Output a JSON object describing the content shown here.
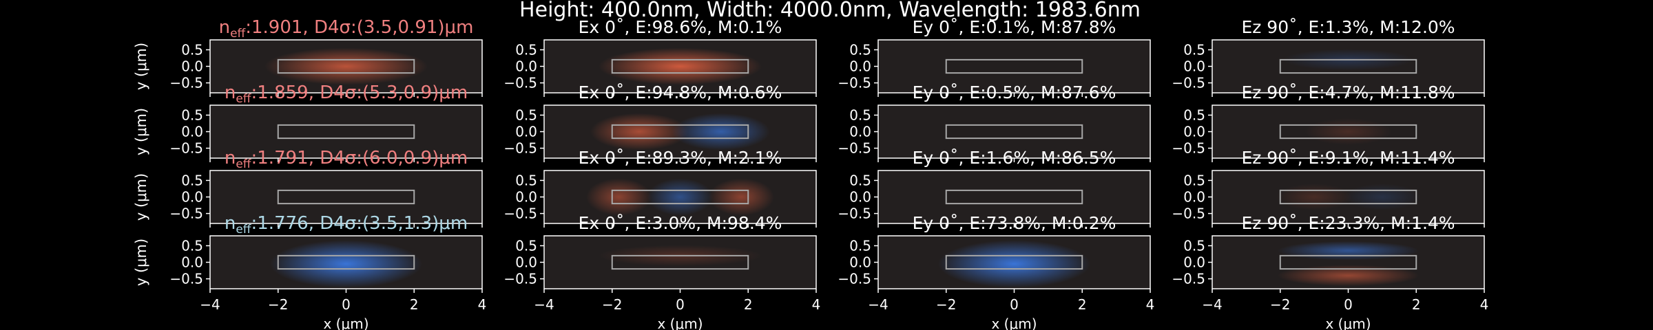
{
  "chart_data": {
    "type": "heatmap",
    "suptitle": "Height: 400.0nm, Width: 4000.0nm, Wavelength: 1983.6nm",
    "ylabel": "y (μm)",
    "xlabel": "x (μm)",
    "xlim": [
      -4,
      4
    ],
    "ylim": [
      -0.8,
      0.8
    ],
    "xticks": [
      "−4",
      "−2",
      "0",
      "2",
      "4"
    ],
    "yticks": [
      "0.5",
      "0.0",
      "−0.5"
    ],
    "waveguide": {
      "x": [
        -2,
        2
      ],
      "y": [
        -0.2,
        0.2
      ]
    },
    "colors": {
      "te": "#f08080",
      "tm": "#add8e6",
      "positive": "#e06040",
      "negative": "#3b78e0",
      "background": "#231f1f"
    },
    "modes": [
      {
        "label_pre": "n",
        "label_sub": "eff",
        "label_post": ":1.901, D4σ:(3.5,0.91)μm",
        "label_color": "te",
        "panels": [
          {
            "title": "",
            "lobes": [
              {
                "x": 0,
                "y": 0,
                "sx": 1.5,
                "sy": 0.35,
                "sign": 1,
                "amp": 0.8
              }
            ]
          },
          {
            "title": "Ex 0˚, E:98.6%, M:0.1%",
            "lobes": [
              {
                "x": 0,
                "y": 0,
                "sx": 1.5,
                "sy": 0.35,
                "sign": 1,
                "amp": 0.9
              }
            ]
          },
          {
            "title": "Ey 0˚, E:0.1%, M:87.8%",
            "lobes": []
          },
          {
            "title": "Ez 90˚, E:1.3%, M:12.0%",
            "lobes": [
              {
                "x": 0,
                "y": 0.2,
                "sx": 1.2,
                "sy": 0.2,
                "sign": -1,
                "amp": 0.25
              }
            ]
          }
        ]
      },
      {
        "label_pre": "n",
        "label_sub": "eff",
        "label_post": ":1.859, D4σ:(5.3,0.9)μm",
        "label_color": "te",
        "panels": [
          {
            "title": "",
            "lobes": []
          },
          {
            "title": "Ex 0˚, E:94.8%, M:0.6%",
            "lobes": [
              {
                "x": -1.2,
                "y": 0,
                "sx": 0.9,
                "sy": 0.35,
                "sign": 1,
                "amp": 0.7
              },
              {
                "x": 1.2,
                "y": 0,
                "sx": 0.9,
                "sy": 0.35,
                "sign": -1,
                "amp": 0.7
              }
            ]
          },
          {
            "title": "Ey 0˚, E:0.5%, M:87.6%",
            "lobes": []
          },
          {
            "title": "Ez 90˚, E:4.7%, M:11.8%",
            "lobes": [
              {
                "x": 0,
                "y": 0,
                "sx": 0.8,
                "sy": 0.25,
                "sign": 1,
                "amp": 0.2
              }
            ]
          }
        ]
      },
      {
        "label_pre": "n",
        "label_sub": "eff",
        "label_post": ":1.791, D4σ:(6.0,0.9)μm",
        "label_color": "te",
        "panels": [
          {
            "title": "",
            "lobes": []
          },
          {
            "title": "Ex 0˚, E:89.3%, M:2.1%",
            "lobes": [
              {
                "x": -1.8,
                "y": 0,
                "sx": 0.6,
                "sy": 0.35,
                "sign": 1,
                "amp": 0.55
              },
              {
                "x": 0,
                "y": 0,
                "sx": 0.6,
                "sy": 0.35,
                "sign": -1,
                "amp": 0.55
              },
              {
                "x": 1.8,
                "y": 0,
                "sx": 0.6,
                "sy": 0.35,
                "sign": 1,
                "amp": 0.55
              }
            ]
          },
          {
            "title": "Ey 0˚, E:1.6%, M:86.5%",
            "lobes": []
          },
          {
            "title": "Ez 90˚, E:9.1%, M:11.4%",
            "lobes": [
              {
                "x": -1,
                "y": 0,
                "sx": 0.7,
                "sy": 0.25,
                "sign": 1,
                "amp": 0.2
              },
              {
                "x": 1,
                "y": 0,
                "sx": 0.7,
                "sy": 0.25,
                "sign": -1,
                "amp": 0.2
              }
            ]
          }
        ]
      },
      {
        "label_pre": "n",
        "label_sub": "eff",
        "label_post": ":1.776, D4σ:(3.5,1.3)μm",
        "label_color": "tm",
        "panels": [
          {
            "title": "",
            "lobes": [
              {
                "x": 0,
                "y": -0.05,
                "sx": 1.4,
                "sy": 0.45,
                "sign": -1,
                "amp": 0.95
              }
            ]
          },
          {
            "title": "Ex 0˚, E:3.0%, M:98.4%",
            "lobes": [
              {
                "x": 0,
                "y": 0.2,
                "sx": 1.5,
                "sy": 0.2,
                "sign": 1,
                "amp": 0.25
              }
            ]
          },
          {
            "title": "Ey 0˚, E:73.8%, M:0.2%",
            "lobes": [
              {
                "x": 0,
                "y": -0.05,
                "sx": 1.4,
                "sy": 0.45,
                "sign": -1,
                "amp": 0.95
              }
            ]
          },
          {
            "title": "Ez 90˚, E:23.3%, M:1.4%",
            "lobes": [
              {
                "x": 0,
                "y": 0.35,
                "sx": 1.3,
                "sy": 0.18,
                "sign": -1,
                "amp": 0.6
              },
              {
                "x": 0,
                "y": -0.4,
                "sx": 1.3,
                "sy": 0.2,
                "sign": 1,
                "amp": 0.6
              }
            ]
          }
        ]
      }
    ]
  }
}
